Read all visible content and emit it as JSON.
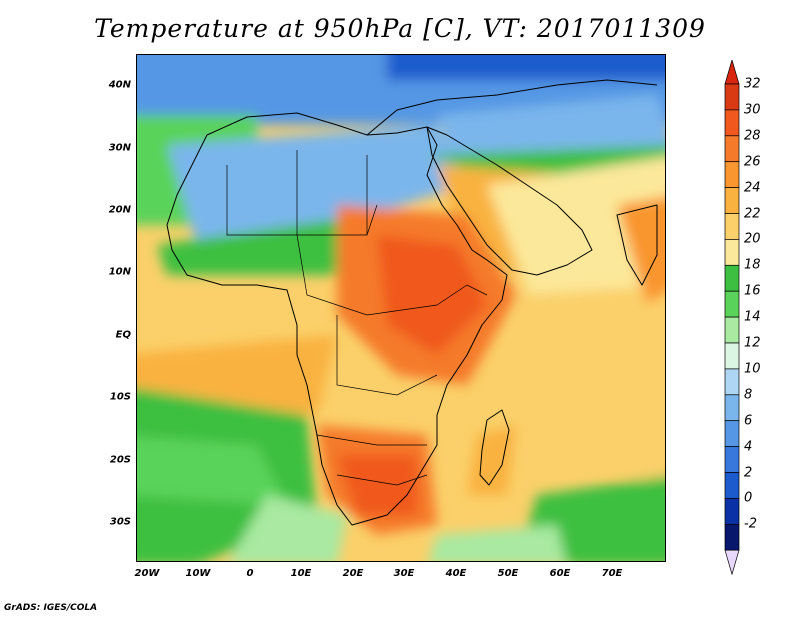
{
  "title": "Temperature at 950hPa [C], VT: 2017011309",
  "credit": "GrADS: IGES/COLA",
  "map": {
    "latitude_labels": [
      "40N",
      "30N",
      "20N",
      "10N",
      "EQ",
      "10S",
      "20S",
      "30S"
    ],
    "longitude_labels": [
      "20W",
      "10W",
      "0",
      "10E",
      "20E",
      "30E",
      "40E",
      "50E",
      "60E",
      "70E"
    ],
    "extent": {
      "lon_min": -23,
      "lon_max": 80,
      "lat_min": -37,
      "lat_max": 45
    }
  },
  "colorbar": {
    "labels": [
      "32",
      "30",
      "28",
      "26",
      "24",
      "22",
      "20",
      "18",
      "16",
      "14",
      "12",
      "10",
      "8",
      "6",
      "4",
      "2",
      "0",
      "-2"
    ],
    "colors_top_to_bottom": [
      "#d93a14",
      "#f0581e",
      "#f57a2a",
      "#f9962f",
      "#f9b23f",
      "#fbd06a",
      "#fce89a",
      "#3dbf41",
      "#5ad35a",
      "#a9e9a1",
      "#dbf7e3",
      "#aed6f4",
      "#7ab6ec",
      "#5597e4",
      "#3878dc",
      "#1c5bcd",
      "#0a32a6",
      "#06176c"
    ],
    "over_color": "#d9250d",
    "under_color": "#e7d8fc"
  }
}
